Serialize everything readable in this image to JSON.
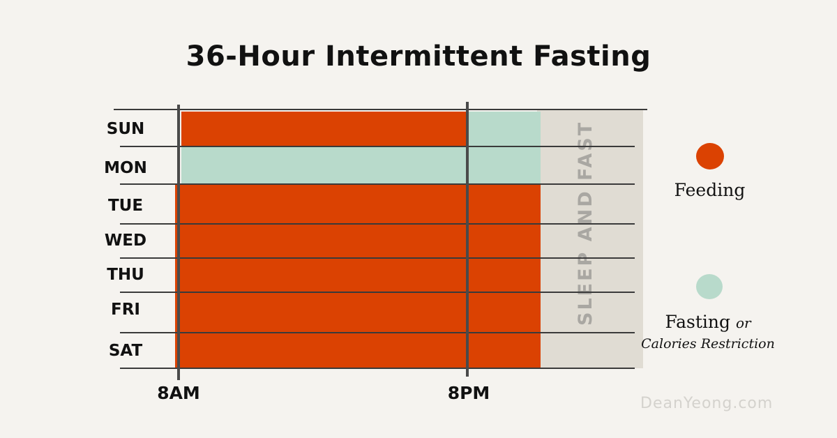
{
  "title": "36-Hour Intermittent Fasting",
  "colors": {
    "feeding": "#db4202",
    "fasting": "#b8dacb",
    "sleep_band": "#e0dcd3",
    "background": "#f5f3ef"
  },
  "days": [
    "SUN",
    "MON",
    "TUE",
    "WED",
    "THU",
    "FRI",
    "SAT"
  ],
  "time_markers": [
    "8AM",
    "8PM"
  ],
  "band_label": "SLEEP AND FAST",
  "legend": {
    "feeding_label": "Feeding",
    "fasting_label": "Fasting",
    "fasting_or": "or",
    "fasting_sub": "Calories Restriction"
  },
  "watermark": "DeanYeong.com",
  "schedule": [
    {
      "day": "SUN",
      "day_part": "feeding",
      "evening_part": "fasting"
    },
    {
      "day": "MON",
      "day_part": "fasting",
      "evening_part": "fasting"
    },
    {
      "day": "TUE",
      "day_part": "feeding",
      "evening_part": "feeding"
    },
    {
      "day": "WED",
      "day_part": "feeding",
      "evening_part": "feeding"
    },
    {
      "day": "THU",
      "day_part": "feeding",
      "evening_part": "feeding"
    },
    {
      "day": "FRI",
      "day_part": "feeding",
      "evening_part": "feeding"
    },
    {
      "day": "SAT",
      "day_part": "feeding",
      "evening_part": "feeding"
    }
  ]
}
